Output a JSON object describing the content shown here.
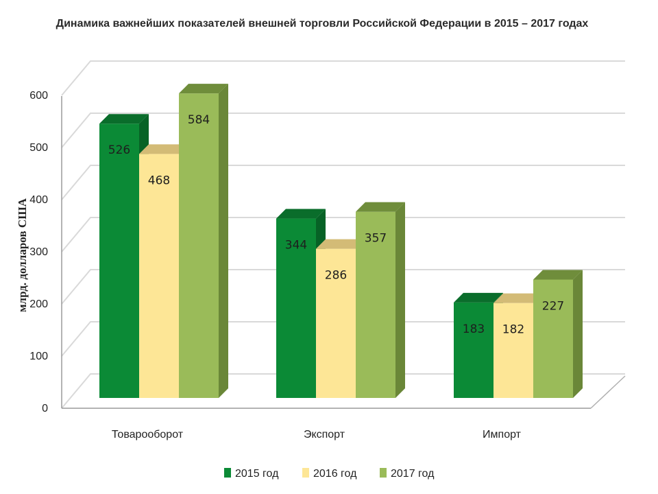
{
  "chart_data": {
    "type": "bar",
    "title": "Динамика важнейших показателей внешней торговли Российской Федерации в 2015 – 2017 годах",
    "ylabel": "млрд. долларов США",
    "xlabel": "",
    "ylim": [
      0,
      600
    ],
    "yticks": [
      "0",
      "100",
      "200",
      "300",
      "400",
      "500",
      "600"
    ],
    "categories": [
      "Товарооборот",
      "Экспорт",
      "Импорт"
    ],
    "series": [
      {
        "name": "2015 год",
        "values": [
          526,
          344,
          183
        ],
        "color": "#0b8a36",
        "top": "#0a6d2b",
        "side": "#076226"
      },
      {
        "name": "2016 год",
        "values": [
          468,
          286,
          182
        ],
        "color": "#fde696",
        "top": "#d3bb76",
        "side": "#c9b06a"
      },
      {
        "name": "2017 год",
        "values": [
          584,
          357,
          227
        ],
        "color": "#9abb59",
        "top": "#6f8d3b",
        "side": "#6a8738"
      }
    ],
    "grid": true,
    "legend": "bottom",
    "style": "3d-clustered-column"
  }
}
